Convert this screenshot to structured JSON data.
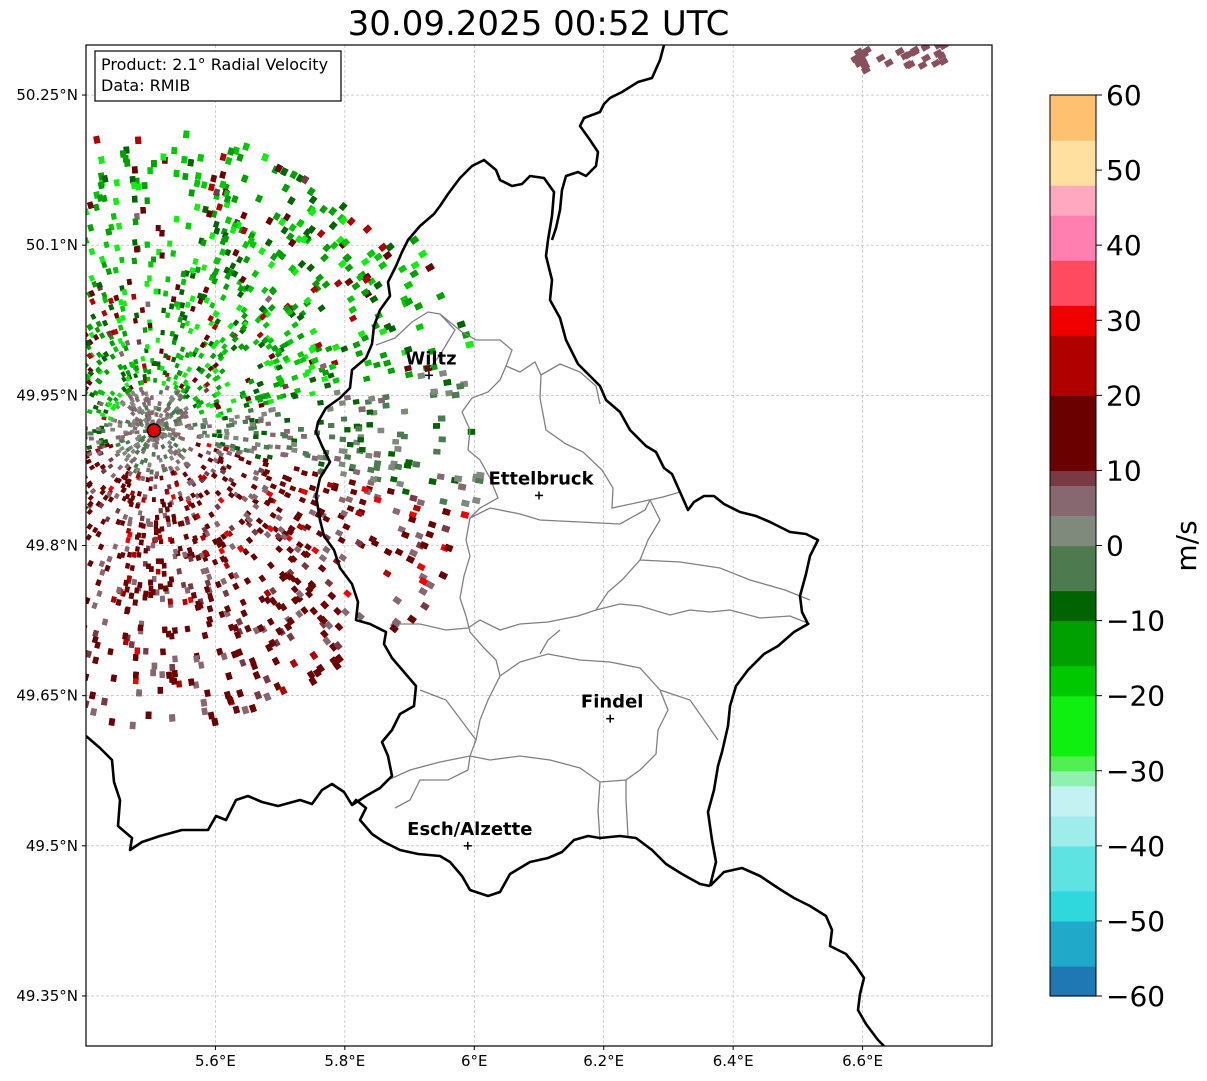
{
  "title": "30.09.2025 00:52 UTC",
  "info_box": {
    "product": "Product: 2.1° Radial Velocity",
    "data": "Data: RMIB"
  },
  "map": {
    "lon_range": [
      5.4,
      6.8
    ],
    "lat_range": [
      49.3,
      50.3
    ],
    "lon_ticks": [
      {
        "value": 5.6,
        "label": "5.6°E"
      },
      {
        "value": 5.8,
        "label": "5.8°E"
      },
      {
        "value": 6.0,
        "label": "6°E"
      },
      {
        "value": 6.2,
        "label": "6.2°E"
      },
      {
        "value": 6.4,
        "label": "6.4°E"
      },
      {
        "value": 6.6,
        "label": "6.6°E"
      }
    ],
    "lat_ticks": [
      {
        "value": 50.25,
        "label": "50.25°N"
      },
      {
        "value": 50.1,
        "label": "50.1°N"
      },
      {
        "value": 49.95,
        "label": "49.95°N"
      },
      {
        "value": 49.8,
        "label": "49.8°N"
      },
      {
        "value": 49.65,
        "label": "49.65°N"
      },
      {
        "value": 49.5,
        "label": "49.5°N"
      },
      {
        "value": 49.35,
        "label": "49.35°N"
      }
    ],
    "radar_site": {
      "lon": 5.505,
      "lat": 49.915,
      "color": "#e00000"
    },
    "cities": [
      {
        "name": "Wiltz",
        "lon": 5.93,
        "lat": 49.97
      },
      {
        "name": "Ettelbruck",
        "lon": 6.1,
        "lat": 49.85
      },
      {
        "name": "Findel",
        "lon": 6.21,
        "lat": 49.627
      },
      {
        "name": "Esch/Alzette",
        "lon": 5.99,
        "lat": 49.5
      }
    ]
  },
  "colorbar": {
    "label": "m/s",
    "min": -60,
    "max": 60,
    "ticks": [
      {
        "value": 60,
        "label": "60"
      },
      {
        "value": 50,
        "label": "50"
      },
      {
        "value": 40,
        "label": "40"
      },
      {
        "value": 30,
        "label": "30"
      },
      {
        "value": 20,
        "label": "20"
      },
      {
        "value": 10,
        "label": "10"
      },
      {
        "value": 0,
        "label": "0"
      },
      {
        "value": -10,
        "label": "−10"
      },
      {
        "value": -20,
        "label": "−20"
      },
      {
        "value": -30,
        "label": "−30"
      },
      {
        "value": -40,
        "label": "−40"
      },
      {
        "value": -50,
        "label": "−50"
      },
      {
        "value": -60,
        "label": "−60"
      }
    ],
    "stops": [
      {
        "v": -60,
        "color": "#1f77b4"
      },
      {
        "v": -55,
        "color": "#21a9c9"
      },
      {
        "v": -50,
        "color": "#2ed8dc"
      },
      {
        "v": -45,
        "color": "#5fe2e2"
      },
      {
        "v": -40,
        "color": "#9eecec"
      },
      {
        "v": -36,
        "color": "#c4f2f2"
      },
      {
        "v": -32,
        "color": "#90f0b0"
      },
      {
        "v": -30,
        "color": "#50f050"
      },
      {
        "v": -27,
        "color": "#10f010"
      },
      {
        "v": -20,
        "color": "#00c800"
      },
      {
        "v": -15,
        "color": "#00a000"
      },
      {
        "v": -9,
        "color": "#006400"
      },
      {
        "v": -5,
        "color": "#4e7a50"
      },
      {
        "v": 0,
        "color": "#7f8a7c"
      },
      {
        "v": 4,
        "color": "#886870"
      },
      {
        "v": 8,
        "color": "#7a3a44"
      },
      {
        "v": 10,
        "color": "#6b0000"
      },
      {
        "v": 20,
        "color": "#b00000"
      },
      {
        "v": 28,
        "color": "#f00000"
      },
      {
        "v": 32,
        "color": "#ff4a60"
      },
      {
        "v": 38,
        "color": "#ff80b0"
      },
      {
        "v": 44,
        "color": "#ffa8c0"
      },
      {
        "v": 48,
        "color": "#ffe0a0"
      },
      {
        "v": 54,
        "color": "#ffc070"
      },
      {
        "v": 60,
        "color": "#ff9a4a"
      }
    ]
  }
}
